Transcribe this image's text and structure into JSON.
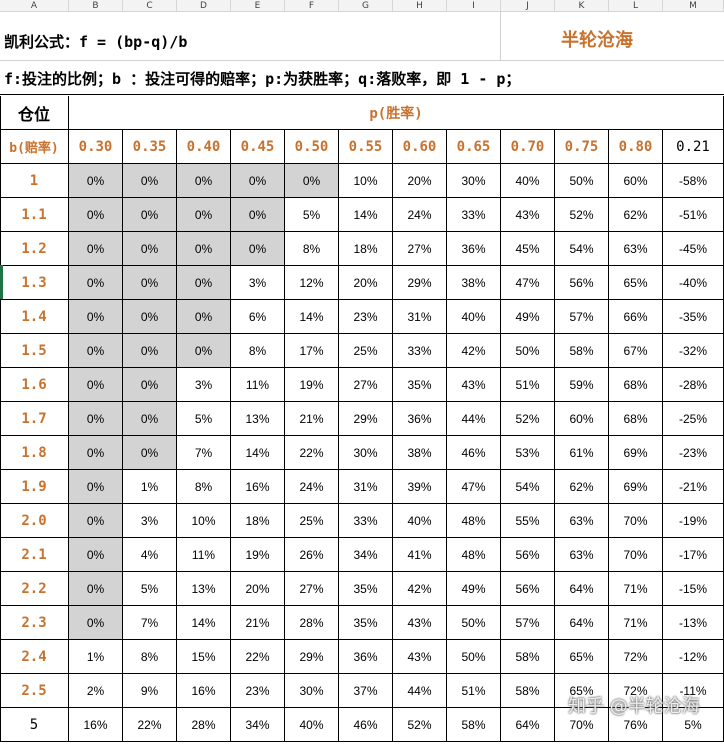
{
  "column_letters": [
    "A",
    "B",
    "C",
    "D",
    "E",
    "F",
    "G",
    "H",
    "I",
    "J",
    "K",
    "L",
    "M"
  ],
  "formula": "凯利公式：f = (bp-q)/b",
  "brand": "半轮沧海",
  "legend": "f:投注的比例；b ：投注可得的赔率；p:为获胜率；q:落败率，即 1 - p；",
  "table": {
    "position_header": "仓位",
    "p_header": "p(胜率)",
    "b_header": "b(赔率)",
    "p_values": [
      "0.30",
      "0.35",
      "0.40",
      "0.45",
      "0.50",
      "0.55",
      "0.60",
      "0.65",
      "0.70",
      "0.75",
      "0.80",
      "0.21"
    ],
    "rows": [
      {
        "b": "1",
        "cells": [
          "0%",
          "0%",
          "0%",
          "0%",
          "0%",
          "10%",
          "20%",
          "30%",
          "40%",
          "50%",
          "60%",
          "-58%"
        ]
      },
      {
        "b": "1.1",
        "cells": [
          "0%",
          "0%",
          "0%",
          "0%",
          "5%",
          "14%",
          "24%",
          "33%",
          "43%",
          "52%",
          "62%",
          "-51%"
        ]
      },
      {
        "b": "1.2",
        "cells": [
          "0%",
          "0%",
          "0%",
          "0%",
          "8%",
          "18%",
          "27%",
          "36%",
          "45%",
          "54%",
          "63%",
          "-45%"
        ]
      },
      {
        "b": "1.3",
        "cells": [
          "0%",
          "0%",
          "0%",
          "3%",
          "12%",
          "20%",
          "29%",
          "38%",
          "47%",
          "56%",
          "65%",
          "-40%"
        ]
      },
      {
        "b": "1.4",
        "cells": [
          "0%",
          "0%",
          "0%",
          "6%",
          "14%",
          "23%",
          "31%",
          "40%",
          "49%",
          "57%",
          "66%",
          "-35%"
        ]
      },
      {
        "b": "1.5",
        "cells": [
          "0%",
          "0%",
          "0%",
          "8%",
          "17%",
          "25%",
          "33%",
          "42%",
          "50%",
          "58%",
          "67%",
          "-32%"
        ]
      },
      {
        "b": "1.6",
        "cells": [
          "0%",
          "0%",
          "3%",
          "11%",
          "19%",
          "27%",
          "35%",
          "43%",
          "51%",
          "59%",
          "68%",
          "-28%"
        ]
      },
      {
        "b": "1.7",
        "cells": [
          "0%",
          "0%",
          "5%",
          "13%",
          "21%",
          "29%",
          "36%",
          "44%",
          "52%",
          "60%",
          "68%",
          "-25%"
        ]
      },
      {
        "b": "1.8",
        "cells": [
          "0%",
          "0%",
          "7%",
          "14%",
          "22%",
          "30%",
          "38%",
          "46%",
          "53%",
          "61%",
          "69%",
          "-23%"
        ]
      },
      {
        "b": "1.9",
        "cells": [
          "0%",
          "1%",
          "8%",
          "16%",
          "24%",
          "31%",
          "39%",
          "47%",
          "54%",
          "62%",
          "69%",
          "-21%"
        ]
      },
      {
        "b": "2.0",
        "cells": [
          "0%",
          "3%",
          "10%",
          "18%",
          "25%",
          "33%",
          "40%",
          "48%",
          "55%",
          "63%",
          "70%",
          "-19%"
        ]
      },
      {
        "b": "2.1",
        "cells": [
          "0%",
          "4%",
          "11%",
          "19%",
          "26%",
          "34%",
          "41%",
          "48%",
          "56%",
          "63%",
          "70%",
          "-17%"
        ]
      },
      {
        "b": "2.2",
        "cells": [
          "0%",
          "5%",
          "13%",
          "20%",
          "27%",
          "35%",
          "42%",
          "49%",
          "56%",
          "64%",
          "71%",
          "-15%"
        ]
      },
      {
        "b": "2.3",
        "cells": [
          "0%",
          "7%",
          "14%",
          "21%",
          "28%",
          "35%",
          "43%",
          "50%",
          "57%",
          "64%",
          "71%",
          "-13%"
        ]
      },
      {
        "b": "2.4",
        "cells": [
          "1%",
          "8%",
          "15%",
          "22%",
          "29%",
          "36%",
          "43%",
          "50%",
          "58%",
          "65%",
          "72%",
          "-12%"
        ]
      },
      {
        "b": "2.5",
        "cells": [
          "2%",
          "9%",
          "16%",
          "23%",
          "30%",
          "37%",
          "44%",
          "51%",
          "58%",
          "65%",
          "72%",
          "-11%"
        ]
      },
      {
        "b": "5",
        "cells": [
          "16%",
          "22%",
          "28%",
          "34%",
          "40%",
          "46%",
          "52%",
          "58%",
          "64%",
          "70%",
          "76%",
          "5%"
        ]
      }
    ]
  },
  "watermark": "知乎 @半轮沧海",
  "colors": {
    "accent": "#c8722e",
    "shade": "#d3d3d3"
  }
}
